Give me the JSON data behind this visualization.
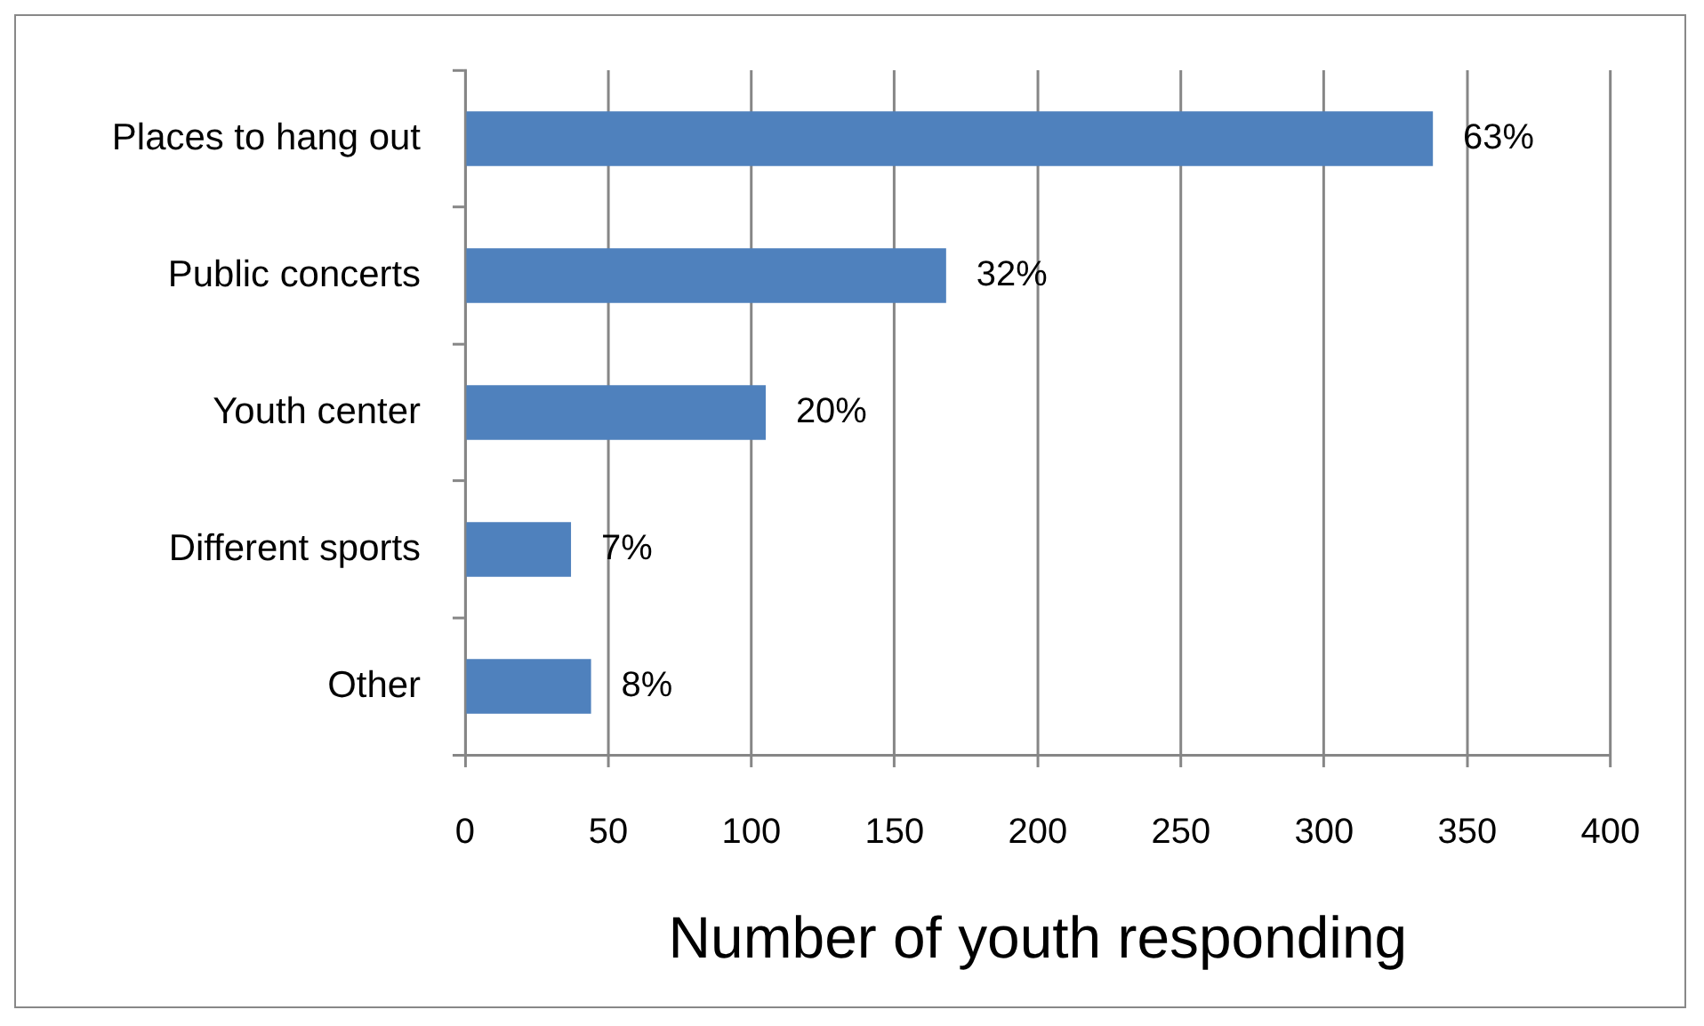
{
  "chart_data": {
    "type": "bar",
    "orientation": "horizontal",
    "xlabel": "Number of youth responding",
    "categories": [
      "Places to hang out",
      "Public concerts",
      "Youth center",
      "Different sports",
      "Other"
    ],
    "values": [
      338,
      168,
      105,
      37,
      44
    ],
    "color": "#4f81bd",
    "annotations": [
      {
        "text": "63%",
        "x": 338,
        "y": "Places to hang out"
      },
      {
        "text": "32%",
        "x": 168,
        "y": "Public concerts"
      },
      {
        "text": "20%",
        "x": 105,
        "y": "Youth center"
      },
      {
        "text": "7%",
        "x": 37,
        "y": "Different sports"
      },
      {
        "text": "8%",
        "x": 44,
        "y": "Other"
      }
    ],
    "xlim": [
      0,
      400
    ],
    "xticks": [
      0,
      50,
      100,
      150,
      200,
      250,
      300,
      350,
      400
    ],
    "grid": "x"
  }
}
